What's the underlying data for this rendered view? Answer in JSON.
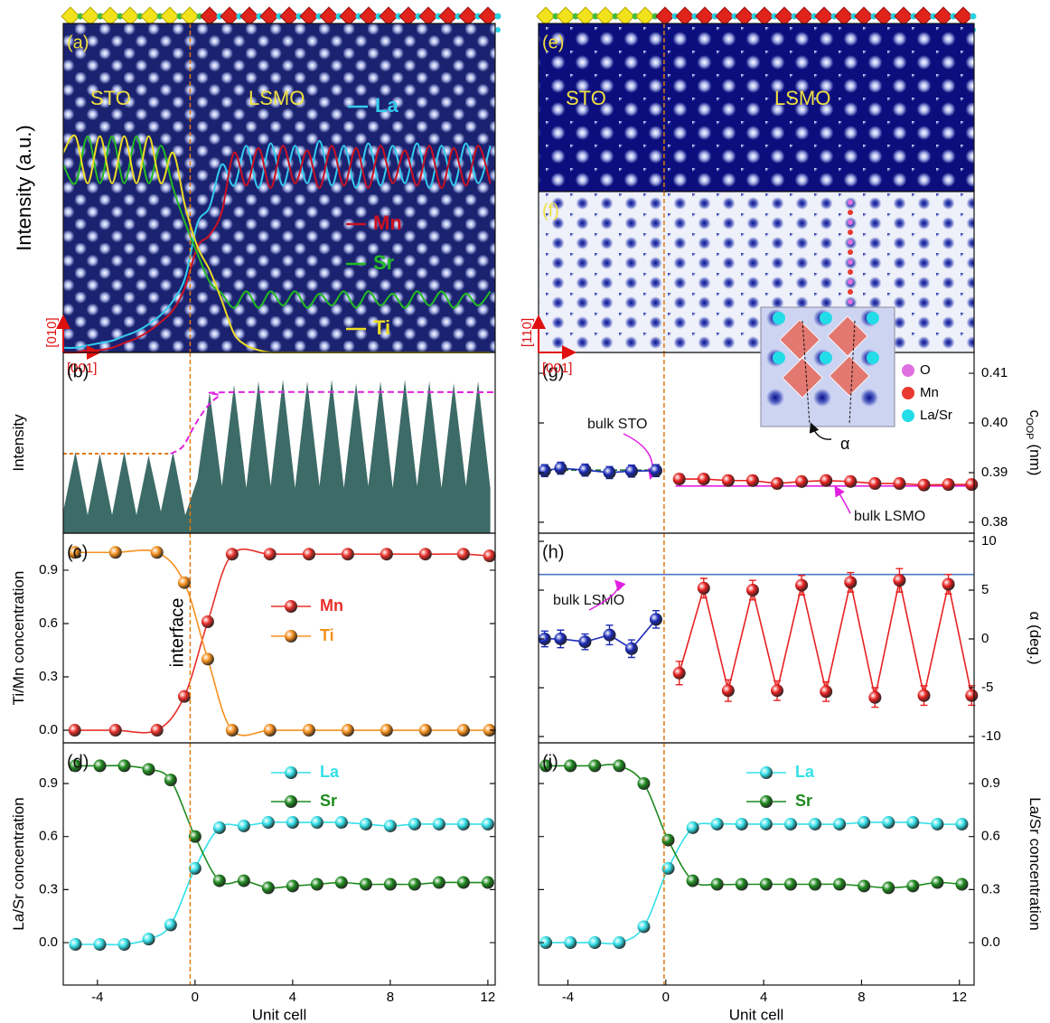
{
  "chart_data": [
    {
      "type": "profile",
      "label": "(a)",
      "ylabel": "Intensity (a.u.)",
      "texts": [
        "STO",
        "LSMO"
      ],
      "axis_labels": [
        "[010]",
        "[001]"
      ],
      "xlim": [
        -5.4,
        12.3
      ],
      "ylim": [
        0,
        1.4
      ],
      "interface": -0.2,
      "x": [
        -5.4,
        -4.9,
        -4.4,
        -3.9,
        -3.4,
        -2.9,
        -2.4,
        -1.9,
        -1.4,
        -0.9,
        -0.4,
        0.1,
        0.6,
        1.1,
        1.6,
        2.1,
        2.6,
        3.1,
        3.6,
        4.1,
        4.6,
        5.1,
        5.6,
        6.1,
        6.6,
        7.1,
        7.6,
        8.1,
        8.6,
        9.1,
        9.6,
        10.1,
        10.6,
        11.1,
        11.6,
        12.1
      ],
      "series": [
        {
          "name": "La",
          "color": "#33ccee",
          "values": [
            0.02,
            0.02,
            0.03,
            0.04,
            0.05,
            0.07,
            0.09,
            0.12,
            0.16,
            0.22,
            0.32,
            0.55,
            0.62,
            0.8,
            0.71,
            0.88,
            0.7,
            0.89,
            0.71,
            0.88,
            0.72,
            0.9,
            0.71,
            0.88,
            0.7,
            0.89,
            0.71,
            0.88,
            0.72,
            0.89,
            0.7,
            0.88,
            0.71,
            0.89,
            0.72,
            0.88
          ]
        },
        {
          "name": "Mn",
          "color": "#cc1122",
          "values": [
            0,
            0,
            0.01,
            0.01,
            0.02,
            0.04,
            0.06,
            0.09,
            0.13,
            0.18,
            0.28,
            0.45,
            0.5,
            0.6,
            0.85,
            0.71,
            0.87,
            0.7,
            0.88,
            0.72,
            0.86,
            0.7,
            0.88,
            0.71,
            0.87,
            0.7,
            0.88,
            0.72,
            0.86,
            0.71,
            0.88,
            0.7,
            0.87,
            0.71,
            0.88,
            0.72
          ]
        },
        {
          "name": "Sr",
          "color": "#22bb22",
          "values": [
            0.8,
            0.72,
            0.92,
            0.72,
            0.92,
            0.72,
            0.92,
            0.72,
            0.88,
            0.7,
            0.55,
            0.42,
            0.3,
            0.25,
            0.19,
            0.26,
            0.19,
            0.26,
            0.2,
            0.26,
            0.19,
            0.25,
            0.2,
            0.26,
            0.19,
            0.26,
            0.2,
            0.25,
            0.19,
            0.26,
            0.2,
            0.26,
            0.19,
            0.25,
            0.2,
            0.26
          ]
        },
        {
          "name": "Ti",
          "color": "#eedd22",
          "values": [
            0.85,
            0.92,
            0.72,
            0.92,
            0.72,
            0.92,
            0.72,
            0.92,
            0.72,
            0.85,
            0.62,
            0.45,
            0.35,
            0.22,
            0.08,
            0.03,
            0.01,
            0,
            0,
            0,
            0,
            0,
            0,
            0,
            0,
            0,
            0,
            0,
            0,
            0,
            0,
            0,
            0,
            0,
            0,
            0
          ]
        }
      ]
    },
    {
      "type": "area",
      "label": "(b)",
      "ylabel": "Intensity",
      "xlim": [
        -5.4,
        12.3
      ],
      "ylim": [
        0,
        1
      ],
      "interface": -0.2,
      "color": "#3d6b67",
      "x": [
        -5.4,
        -4.9,
        -4.4,
        -3.9,
        -3.4,
        -2.9,
        -2.4,
        -1.9,
        -1.4,
        -0.9,
        -0.4,
        0.1,
        0.6,
        1.1,
        1.6,
        2.1,
        2.6,
        3.1,
        3.6,
        4.1,
        4.6,
        5.1,
        5.6,
        6.1,
        6.6,
        7.1,
        7.6,
        8.1,
        8.6,
        9.1,
        9.6,
        10.1,
        10.6,
        11.1,
        11.6,
        12.1
      ],
      "values": [
        0.12,
        0.45,
        0.1,
        0.44,
        0.1,
        0.45,
        0.1,
        0.43,
        0.12,
        0.45,
        0.1,
        0.3,
        0.78,
        0.26,
        0.82,
        0.25,
        0.84,
        0.26,
        0.85,
        0.25,
        0.84,
        0.26,
        0.85,
        0.25,
        0.83,
        0.26,
        0.84,
        0.25,
        0.85,
        0.26,
        0.84,
        0.25,
        0.83,
        0.26,
        0.84,
        0.25
      ],
      "guides": [
        {
          "color": "#e07a10",
          "x": [
            -5.4,
            -1
          ],
          "values": [
            0.44,
            0.44
          ]
        },
        {
          "color": "#e020e0",
          "x": [
            -1,
            -0.5,
            0,
            0.5,
            1,
            1.5,
            12.3
          ],
          "values": [
            0.44,
            0.48,
            0.6,
            0.7,
            0.76,
            0.78,
            0.78
          ]
        }
      ]
    },
    {
      "type": "scatter",
      "label": "(c)",
      "ylabel": "Ti/Mn concentration",
      "annotation": "interface",
      "yaxis": "left",
      "smooth": true,
      "xlim": [
        -5.4,
        12.3
      ],
      "ylim": [
        -0.071,
        1.108
      ],
      "interface": -0.2,
      "yticks": [
        {
          "value": 0,
          "label": "0.0"
        },
        0.3,
        0.6,
        0.9
      ],
      "x": [
        -4.93,
        -3.26,
        -1.56,
        -0.44,
        0.52,
        1.52,
        3.07,
        4.67,
        6.26,
        7.85,
        9.44,
        11.0,
        12.07
      ],
      "series": [
        {
          "name": "Mn",
          "color": "#e8302a",
          "values": [
            0,
            0,
            0,
            0.19,
            0.61,
            0.99,
            0.99,
            0.99,
            0.99,
            0.99,
            0.99,
            0.99,
            0.98
          ]
        },
        {
          "name": "Ti",
          "color": "#f5901e",
          "values": [
            1,
            1,
            1,
            0.83,
            0.4,
            0,
            0,
            0,
            0,
            0,
            0,
            0,
            0
          ]
        }
      ]
    },
    {
      "type": "scatter",
      "label": "(d)",
      "ylabel": "La/Sr concentration",
      "xlabel": "Unit cell",
      "yaxis": "left",
      "smooth": true,
      "xlim": [
        -5.4,
        12.3
      ],
      "ylim": [
        -0.24,
        1.13
      ],
      "interface": -0.2,
      "xticks": [
        -4,
        0,
        4,
        8,
        12
      ],
      "yticks": [
        {
          "value": 0,
          "label": "0.0"
        },
        0.3,
        0.6,
        0.9
      ],
      "x": [
        -4.9,
        -3.9,
        -2.9,
        -1.9,
        -1,
        0,
        1,
        2,
        3,
        4,
        5,
        6,
        7,
        8,
        9,
        10,
        11,
        12
      ],
      "series": [
        {
          "name": "La",
          "color": "#33e0e8",
          "values": [
            -0.01,
            -0.01,
            -0.01,
            0.02,
            0.1,
            0.42,
            0.65,
            0.66,
            0.68,
            0.68,
            0.68,
            0.68,
            0.67,
            0.66,
            0.67,
            0.67,
            0.67,
            0.67
          ]
        },
        {
          "name": "Sr",
          "color": "#1f8a1f",
          "values": [
            1,
            1,
            1,
            0.98,
            0.92,
            0.6,
            0.35,
            0.35,
            0.31,
            0.32,
            0.33,
            0.34,
            0.33,
            0.33,
            0.33,
            0.34,
            0.34,
            0.34
          ]
        }
      ]
    },
    {
      "type": "image",
      "label": "(e)",
      "texts": [
        "STO",
        "LSMO"
      ],
      "xlim": [
        -5.2,
        12.6
      ],
      "interface": -0.07
    },
    {
      "type": "image",
      "label": "(f)",
      "axis_labels": [
        "[110]",
        "[001]"
      ],
      "xlim": [
        -5.2,
        12.6
      ],
      "interface": -0.07,
      "inset_legend": [
        {
          "name": "O",
          "color": "#e070e0"
        },
        {
          "name": "Mn",
          "color": "#e83a30"
        },
        {
          "name": "La/Sr",
          "color": "#22dde8"
        }
      ],
      "angle_label": "α"
    },
    {
      "type": "scatter",
      "label": "(g)",
      "ylabel": "c",
      "ylabel_sub": "OOP",
      "ylabel_unit": "(nm)",
      "yaxis": "right",
      "xlim": [
        -5.2,
        12.6
      ],
      "ylim": [
        0.3778,
        0.4142
      ],
      "interface": -0.07,
      "yticks": [
        0.38,
        0.39,
        {
          "value": 0.4,
          "label": "0.40"
        },
        0.41
      ],
      "refs": [
        {
          "name": "bulk STO",
          "color": "#1a7a2a",
          "x": [
            -5.2,
            -0.4
          ],
          "value": 0.3905
        },
        {
          "name": "bulk LSMO",
          "color": "#e020e0",
          "x": [
            0.4,
            12.6
          ],
          "value": 0.3873
        }
      ],
      "series": [
        {
          "color": "#1a2ab8",
          "x": [
            -4.95,
            -4.3,
            -3.3,
            -2.3,
            -1.4,
            -0.4
          ],
          "values": [
            0.3904,
            0.3909,
            0.3905,
            0.39,
            0.3903,
            0.3904
          ],
          "errors": [
            0.0012,
            0.0012,
            0.0012,
            0.0012,
            0.0012,
            0.0012
          ]
        },
        {
          "color": "#e82020",
          "x": [
            0.55,
            1.55,
            2.55,
            3.55,
            4.55,
            5.55,
            6.55,
            7.55,
            8.55,
            9.55,
            10.55,
            11.55,
            12.5
          ],
          "values": [
            0.3887,
            0.3887,
            0.3884,
            0.3884,
            0.3878,
            0.3882,
            0.3884,
            0.3882,
            0.3878,
            0.3878,
            0.3875,
            0.3876,
            0.3876
          ],
          "errors": [
            0.001,
            0.001,
            0.001,
            0.001,
            0.001,
            0.001,
            0.001,
            0.001,
            0.001,
            0.001,
            0.001,
            0.001,
            0.001
          ]
        }
      ]
    },
    {
      "type": "scatter",
      "label": "(h)",
      "ylabel": "α (deg.)",
      "yaxis": "right",
      "xlim": [
        -5.2,
        12.6
      ],
      "ylim": [
        -10.65,
        10.83
      ],
      "interface": -0.07,
      "yticks": [
        -10,
        -5,
        0,
        5,
        10
      ],
      "refs": [
        {
          "name": "bulk LSMO",
          "color": "#4a78c8",
          "x": [
            -5.2,
            12.6
          ],
          "value": 6.6
        }
      ],
      "series": [
        {
          "color": "#1a2ab8",
          "x": [
            -4.95,
            -4.3,
            -3.3,
            -2.3,
            -1.4,
            -0.4
          ],
          "values": [
            0,
            0,
            -0.3,
            0.4,
            -1,
            2
          ],
          "errors": [
            0.8,
            0.9,
            0.8,
            1,
            0.9,
            0.9
          ]
        },
        {
          "color": "#e82020",
          "x": [
            0.55,
            1.55,
            2.55,
            3.55,
            4.55,
            5.55,
            6.55,
            7.55,
            8.55,
            9.55,
            10.55,
            11.55,
            12.5
          ],
          "values": [
            -3.5,
            5.2,
            -5.3,
            5,
            -5.3,
            5.5,
            -5.4,
            5.8,
            -6,
            6,
            -5.8,
            5.6,
            -5.8
          ],
          "errors": [
            1.2,
            1,
            1.1,
            1,
            1,
            1,
            1,
            1,
            1,
            1.2,
            1,
            1,
            1
          ]
        }
      ]
    },
    {
      "type": "scatter",
      "label": "(i)",
      "ylabel": "La/Sr concentration",
      "xlabel": "Unit cell",
      "yaxis": "right",
      "smooth": true,
      "xlim": [
        -5.2,
        12.6
      ],
      "ylim": [
        -0.24,
        1.13
      ],
      "interface": -0.07,
      "xticks": [
        -4,
        0,
        4,
        8,
        12
      ],
      "yticks": [
        {
          "value": 0,
          "label": "0.0"
        },
        0.3,
        0.6,
        0.9
      ],
      "x": [
        -4.9,
        -3.9,
        -2.9,
        -1.9,
        -0.9,
        0.1,
        1.1,
        2.1,
        3.1,
        4.1,
        5.1,
        6.1,
        7.1,
        8.1,
        9.1,
        10.1,
        11.1,
        12.1
      ],
      "series": [
        {
          "name": "La",
          "color": "#33e0e8",
          "values": [
            0,
            0,
            0,
            0,
            0.09,
            0.42,
            0.65,
            0.67,
            0.67,
            0.67,
            0.67,
            0.67,
            0.67,
            0.68,
            0.68,
            0.68,
            0.67,
            0.67
          ]
        },
        {
          "name": "Sr",
          "color": "#1f8a1f",
          "values": [
            1,
            1,
            1,
            1,
            0.9,
            0.58,
            0.35,
            0.33,
            0.33,
            0.33,
            0.33,
            0.33,
            0.33,
            0.32,
            0.31,
            0.32,
            0.34,
            0.33
          ]
        }
      ]
    }
  ]
}
